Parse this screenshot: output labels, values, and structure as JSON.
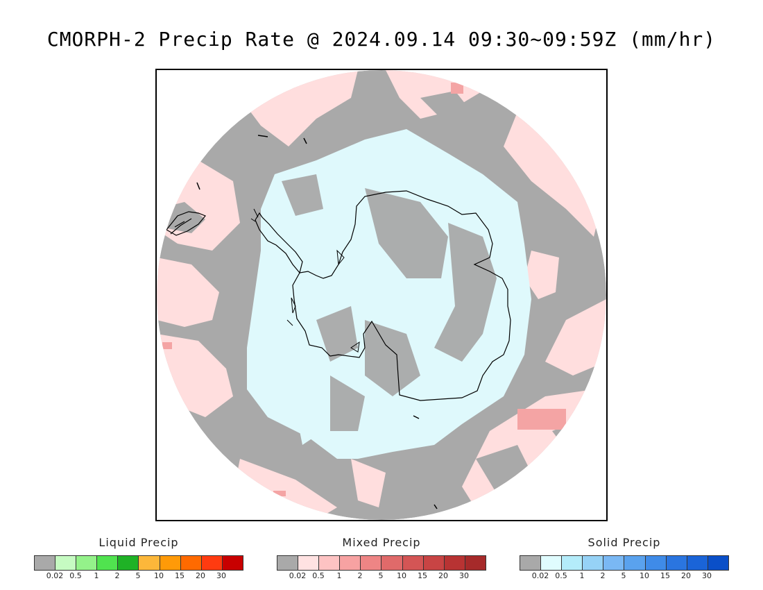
{
  "title": "CMORPH-2 Precip Rate @ 2024.09.14 09:30~09:59Z (mm/hr)",
  "colors": {
    "background": "#ffffff",
    "no_data_gray": "#a9a9a9",
    "mixed_light": "#ffdede",
    "solid_light": "#dff9fc",
    "coastline": "#000000"
  },
  "legends": [
    {
      "title": "Liquid Precip",
      "ticks": [
        "0.02",
        "0.5",
        "1",
        "2",
        "5",
        "10",
        "15",
        "20",
        "30"
      ],
      "colors": [
        "#a9a9a9",
        "#c6fbc2",
        "#94f28a",
        "#50e34f",
        "#1fb226",
        "#fcb73a",
        "#ff9a08",
        "#ff6a00",
        "#ff3b10",
        "#c80000"
      ]
    },
    {
      "title": "Mixed Precip",
      "ticks": [
        "0.02",
        "0.5",
        "1",
        "2",
        "5",
        "10",
        "15",
        "20",
        "30"
      ],
      "colors": [
        "#a9a9a9",
        "#ffe2e2",
        "#fdc3c3",
        "#f7a2a2",
        "#ee8585",
        "#e06a6a",
        "#d45555",
        "#c84444",
        "#b83333",
        "#a62a2a"
      ]
    },
    {
      "title": "Solid Precip",
      "ticks": [
        "0.02",
        "0.5",
        "1",
        "2",
        "5",
        "10",
        "15",
        "20",
        "30"
      ],
      "colors": [
        "#a9a9a9",
        "#e0fcfe",
        "#b4ecfa",
        "#96d2f6",
        "#7ab8f4",
        "#5aa2ee",
        "#3f8be8",
        "#2a75e0",
        "#1a64d8",
        "#0a4fc8"
      ]
    }
  ]
}
